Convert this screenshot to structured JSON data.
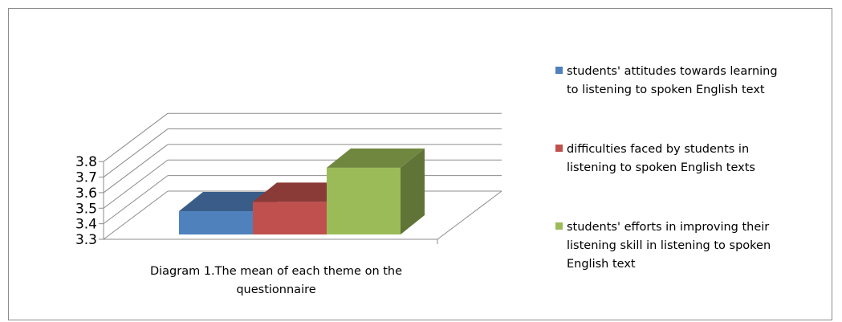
{
  "chart_data": {
    "type": "bar",
    "style": "3d-column",
    "title": "",
    "caption": [
      "Diagram 1.The mean of each theme on the",
      "questionnaire"
    ],
    "categories": [
      "students' attitudes towards learning to listening to spoken English text",
      "difficulties faced by students in listening to spoken English texts",
      "students' efforts in improving their listening skill in listening to spoken English text"
    ],
    "values": [
      3.46,
      3.52,
      3.74
    ],
    "colors": [
      "#4f81bd",
      "#c0504d",
      "#9bbb59"
    ],
    "ylim": [
      3.3,
      3.8
    ],
    "yticks": [
      "3.3",
      "3.4",
      "3.5",
      "3.6",
      "3.7",
      "3.8"
    ],
    "grid": true,
    "legend": {
      "position": "right",
      "entries": [
        [
          "students' attitudes towards learning",
          "to listening to spoken English text"
        ],
        [
          "difficulties faced by students in",
          "listening to spoken English texts"
        ],
        [
          "students' efforts in improving their",
          "listening skill in listening to spoken",
          "English text"
        ]
      ]
    }
  }
}
